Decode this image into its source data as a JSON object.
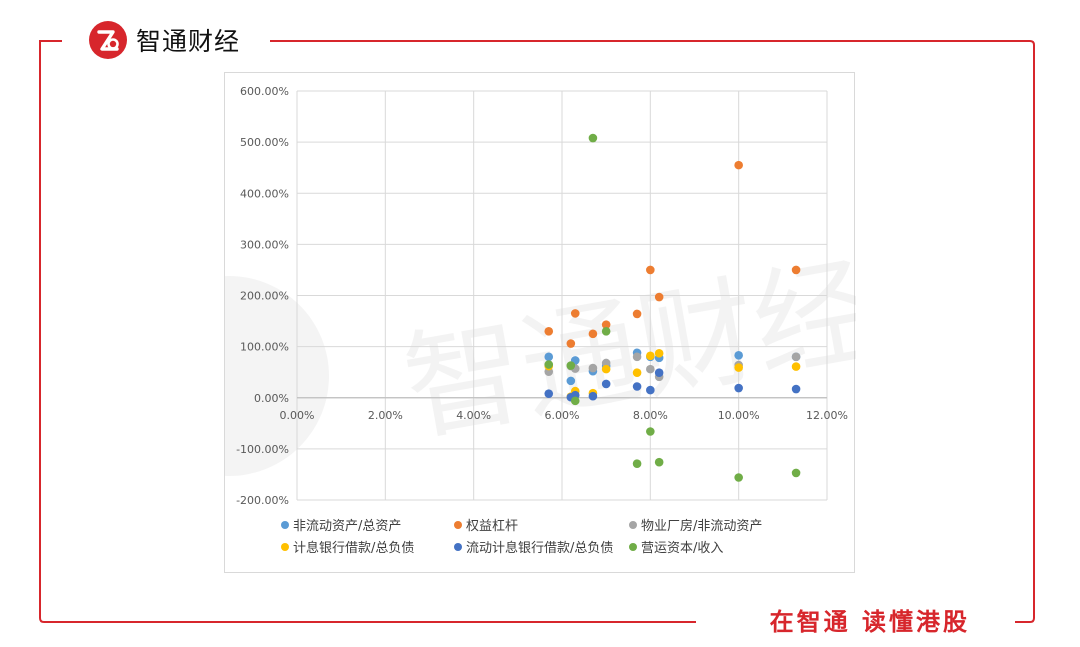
{
  "brand": {
    "name": "智通财经"
  },
  "slogan": "在智通 读懂港股",
  "watermark_text": "智通财经",
  "colors": {
    "brand_red": "#d7262c",
    "grid": "#d9d9d9"
  },
  "chart_data": {
    "type": "scatter",
    "xlim": [
      0,
      0.12
    ],
    "ylim": [
      -2,
      6
    ],
    "x_ticks": [
      {
        "v": 0,
        "label": "0.00%"
      },
      {
        "v": 0.02,
        "label": "2.00%"
      },
      {
        "v": 0.04,
        "label": "4.00%"
      },
      {
        "v": 0.06,
        "label": "6.00%"
      },
      {
        "v": 0.08,
        "label": "8.00%"
      },
      {
        "v": 0.1,
        "label": "10.00%"
      },
      {
        "v": 0.12,
        "label": "12.00%"
      }
    ],
    "y_ticks": [
      {
        "v": 6,
        "label": "600.00%"
      },
      {
        "v": 5,
        "label": "500.00%"
      },
      {
        "v": 4,
        "label": "400.00%"
      },
      {
        "v": 3,
        "label": "300.00%"
      },
      {
        "v": 2,
        "label": "200.00%"
      },
      {
        "v": 1,
        "label": "100.00%"
      },
      {
        "v": 0,
        "label": "0.00%"
      },
      {
        "v": -1,
        "label": "-100.00%"
      },
      {
        "v": -2,
        "label": "-200.00%"
      }
    ],
    "grid": true,
    "legend_position": "bottom",
    "series": [
      {
        "name": "非流动资产/总资产",
        "color": "#5b9bd5",
        "points": [
          [
            0.057,
            0.8
          ],
          [
            0.062,
            0.33
          ],
          [
            0.063,
            0.73
          ],
          [
            0.067,
            0.52
          ],
          [
            0.07,
            0.62
          ],
          [
            0.077,
            0.88
          ],
          [
            0.08,
            0.8
          ],
          [
            0.082,
            0.78
          ],
          [
            0.1,
            0.83
          ],
          [
            0.113,
            0.8
          ]
        ]
      },
      {
        "name": "权益杠杆",
        "color": "#ed7d31",
        "points": [
          [
            0.057,
            1.3
          ],
          [
            0.062,
            1.06
          ],
          [
            0.063,
            1.65
          ],
          [
            0.067,
            1.25
          ],
          [
            0.07,
            1.43
          ],
          [
            0.077,
            1.64
          ],
          [
            0.08,
            2.5
          ],
          [
            0.082,
            1.97
          ],
          [
            0.1,
            4.55
          ],
          [
            0.113,
            2.5
          ]
        ]
      },
      {
        "name": "物业厂房/非流动资产",
        "color": "#a5a5a5",
        "points": [
          [
            0.057,
            0.51
          ],
          [
            0.062,
            0.62
          ],
          [
            0.063,
            0.57
          ],
          [
            0.067,
            0.58
          ],
          [
            0.07,
            0.68
          ],
          [
            0.077,
            0.8
          ],
          [
            0.08,
            0.56
          ],
          [
            0.082,
            0.41
          ],
          [
            0.1,
            0.64
          ],
          [
            0.113,
            0.8
          ]
        ]
      },
      {
        "name": "计息银行借款/总负债",
        "color": "#ffc000",
        "points": [
          [
            0.057,
            0.62
          ],
          [
            0.062,
            0.02
          ],
          [
            0.063,
            0.13
          ],
          [
            0.067,
            0.09
          ],
          [
            0.07,
            0.56
          ],
          [
            0.077,
            0.49
          ],
          [
            0.08,
            0.82
          ],
          [
            0.082,
            0.87
          ],
          [
            0.1,
            0.59
          ],
          [
            0.113,
            0.61
          ]
        ]
      },
      {
        "name": "流动计息银行借款/总负债",
        "color": "#4472c4",
        "points": [
          [
            0.057,
            0.08
          ],
          [
            0.062,
            0.01
          ],
          [
            0.063,
            0.05
          ],
          [
            0.067,
            0.03
          ],
          [
            0.07,
            0.27
          ],
          [
            0.077,
            0.22
          ],
          [
            0.08,
            0.15
          ],
          [
            0.082,
            0.49
          ],
          [
            0.1,
            0.19
          ],
          [
            0.113,
            0.17
          ]
        ]
      },
      {
        "name": "营运资本/收入",
        "color": "#70ad47",
        "points": [
          [
            0.057,
            0.65
          ],
          [
            0.062,
            0.63
          ],
          [
            0.063,
            -0.06
          ],
          [
            0.067,
            5.08
          ],
          [
            0.07,
            1.3
          ],
          [
            0.077,
            -1.29
          ],
          [
            0.08,
            -0.66
          ],
          [
            0.082,
            -1.26
          ],
          [
            0.1,
            -1.56
          ],
          [
            0.113,
            -1.47
          ]
        ]
      }
    ]
  }
}
